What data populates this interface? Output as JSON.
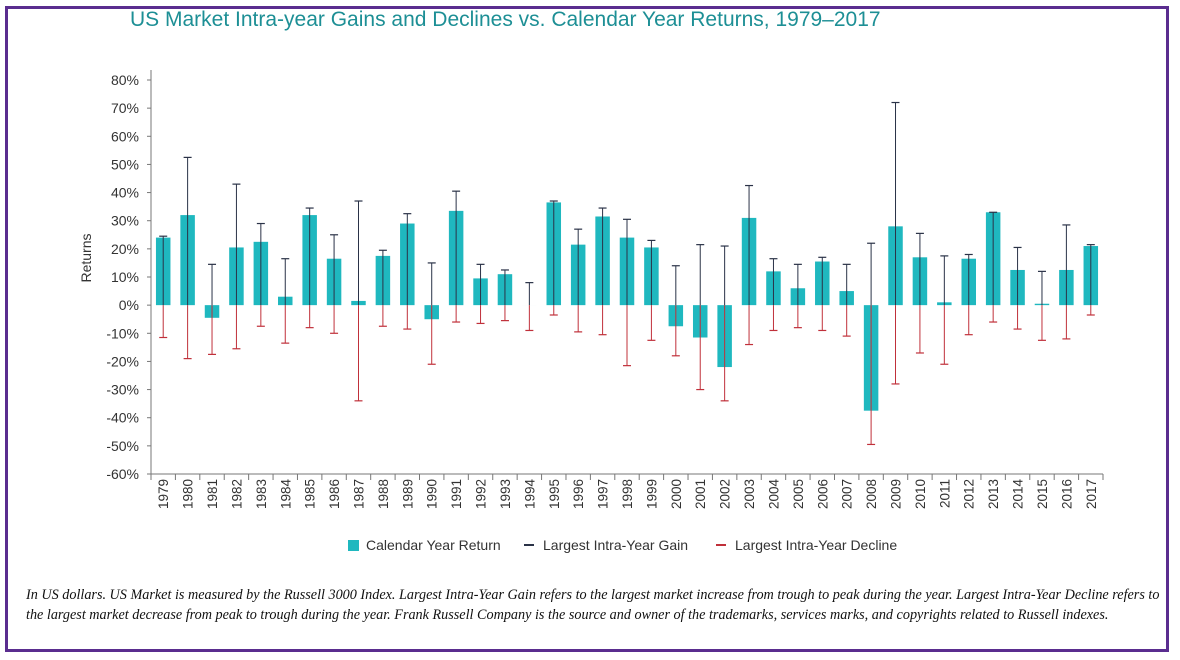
{
  "colors": {
    "bar": "#1fb8bf",
    "gain": "#2a3247",
    "decline": "#c0303a",
    "title": "#1d8f95",
    "frame": "#5a2d8f"
  },
  "footnote": "In US dollars. US Market is measured by the Russell 3000 Index. Largest Intra-Year Gain refers to the largest market increase from trough to peak during the year. Largest Intra-Year Decline refers to the largest market decrease from peak to trough during the year. Frank Russell Company is the source and owner of the trademarks, services marks, and copyrights related to Russell indexes.",
  "chart_data": {
    "type": "bar",
    "title": "US Market Intra-year Gains and Declines vs. Calendar Year Returns, 1979–2017",
    "ylabel": "Returns",
    "xlabel": "",
    "ylim": [
      -60,
      80
    ],
    "yticks": [
      80,
      70,
      60,
      50,
      40,
      30,
      20,
      10,
      0,
      -10,
      -20,
      -30,
      -40,
      -50,
      -60
    ],
    "ytick_labels": [
      "80%",
      "70%",
      "60%",
      "50%",
      "40%",
      "30%",
      "20%",
      "10%",
      "0%",
      "-10%",
      "-20%",
      "-30%",
      "-40%",
      "-50%",
      "-60%"
    ],
    "legend_position": "bottom",
    "grid": false,
    "categories": [
      "1979",
      "1980",
      "1981",
      "1982",
      "1983",
      "1984",
      "1985",
      "1986",
      "1987",
      "1988",
      "1989",
      "1990",
      "1991",
      "1992",
      "1993",
      "1994",
      "1995",
      "1996",
      "1997",
      "1998",
      "1999",
      "2000",
      "2001",
      "2002",
      "2003",
      "2004",
      "2005",
      "2006",
      "2007",
      "2008",
      "2009",
      "2010",
      "2011",
      "2012",
      "2013",
      "2014",
      "2015",
      "2016",
      "2017"
    ],
    "series": [
      {
        "name": "Calendar Year Return",
        "kind": "bar",
        "values": [
          24,
          32,
          -4.5,
          20.5,
          22.5,
          3,
          32,
          16.5,
          1.5,
          17.5,
          29,
          -5,
          33.5,
          9.5,
          11,
          0,
          36.5,
          21.5,
          31.5,
          24,
          20.5,
          -7.5,
          -11.5,
          -22,
          31,
          12,
          6,
          15.5,
          5,
          -37.5,
          28,
          17,
          1,
          16.5,
          33,
          12.5,
          0.5,
          12.5,
          21
        ]
      },
      {
        "name": "Largest Intra-Year Gain",
        "kind": "line",
        "values": [
          24.5,
          52.5,
          14.5,
          43,
          29,
          16.5,
          34.5,
          25,
          37,
          19.5,
          32.5,
          15,
          40.5,
          14.5,
          12.5,
          8,
          37,
          27,
          34.5,
          30.5,
          23,
          14,
          21.5,
          21,
          42.5,
          16.5,
          14.5,
          17,
          14.5,
          22,
          72,
          25.5,
          17.5,
          18,
          33,
          20.5,
          12,
          28.5,
          21.5
        ]
      },
      {
        "name": "Largest Intra-Year Decline",
        "kind": "line",
        "values": [
          -11.5,
          -19,
          -17.5,
          -15.5,
          -7.5,
          -13.5,
          -8,
          -10,
          -34,
          -7.5,
          -8.5,
          -21,
          -6,
          -6.5,
          -5.5,
          -9,
          -3.5,
          -9.5,
          -10.5,
          -21.5,
          -12.5,
          -18,
          -30,
          -34,
          -14,
          -9,
          -8,
          -9,
          -11,
          -49.5,
          -28,
          -17,
          -21,
          -10.5,
          -6,
          -8.5,
          -12.5,
          -12,
          -3.5
        ]
      }
    ]
  }
}
